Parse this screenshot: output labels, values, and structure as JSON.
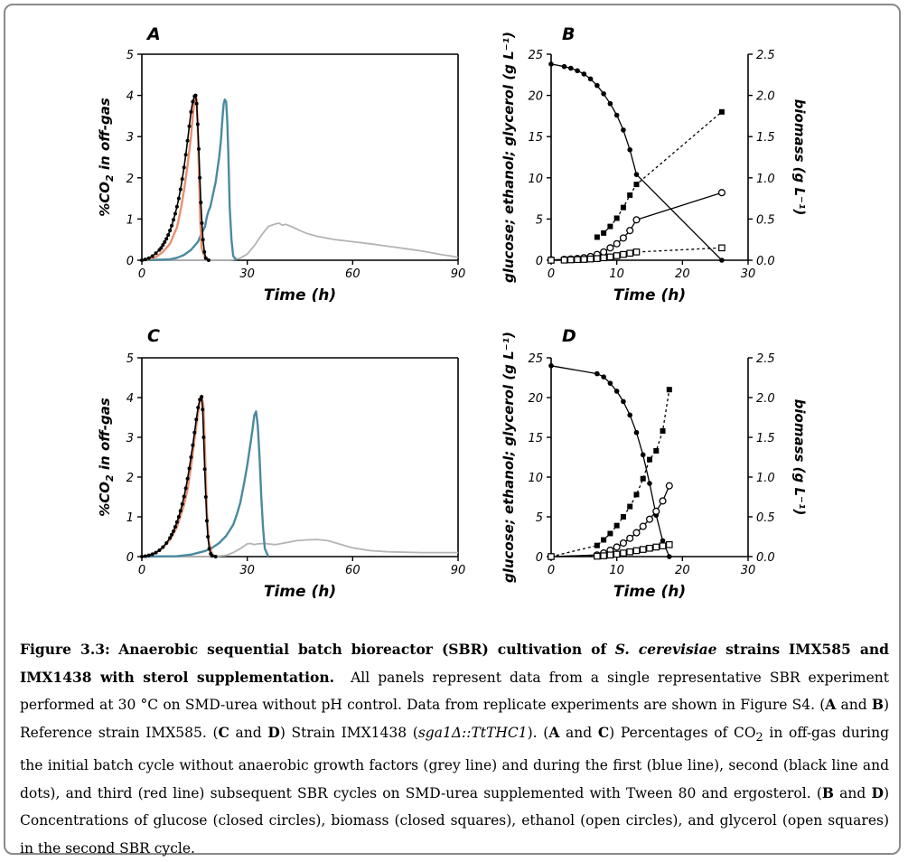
{
  "caption": {
    "figure_label": "Figure 3.3:",
    "title_before": "Anaerobic sequential batch bioreactor (SBR) cultivation of",
    "title_species": "S. cerevisiae",
    "title_after": "strains IMX585 and IMX1438 with sterol supplementation.",
    "s1": "All panels represent data from a single representative SBR experiment performed at 30 °C on SMD-urea without pH control. Data from replicate experiments are shown in Figure S4. (",
    "b_A1": "A",
    "and1": " and ",
    "b_B1": "B",
    "s2": ") Reference strain IMX585. (",
    "b_C1": "C",
    "and2": " and ",
    "b_D1": "D",
    "s3": ") Strain IMX1438 (",
    "genotype": "sga1Δ::TtTHC1",
    "s4": "). (",
    "b_A2": "A",
    "and3": " and ",
    "b_C2": "C",
    "s5": ") Percentages of CO",
    "sub2": "2",
    "s6": " in off-gas during the initial batch cycle without anaerobic growth factors (grey line) and during the first (blue line), second (black line and dots), and third (red line) subsequent SBR cycles on SMD-urea supplemented with Tween 80 and ergosterol. (",
    "b_B2": "B",
    "and4": " and ",
    "b_D2": "D",
    "s7": ") Concentrations of glucose (closed circles), biomass (closed squares), ethanol (open circles), and glycerol (open squares) in the second SBR cycle."
  },
  "chart_data": [
    {
      "panel": "A",
      "type": "line",
      "xlabel": "Time (h)",
      "ylabel_prefix": "%CO",
      "ylabel_sub": "2",
      "ylabel_suffix": " in off-gas",
      "xlim": [
        0,
        90
      ],
      "ylim": [
        0,
        5
      ],
      "xticks": [
        0,
        30,
        60,
        90
      ],
      "yticks": [
        0,
        1,
        2,
        3,
        4,
        5
      ],
      "grid": false,
      "colors": {
        "grey": "#b4b4b4",
        "blue": "#4a8aa0",
        "red": "#e89070",
        "black": "#000000"
      },
      "series": [
        {
          "key": "grey",
          "x": [
            0,
            24,
            26,
            28,
            30,
            32,
            34,
            36,
            38,
            39,
            40,
            41,
            43,
            45,
            47,
            50,
            55,
            60,
            65,
            70,
            75,
            80,
            85,
            88,
            90
          ],
          "y": [
            0,
            0,
            0.01,
            0.05,
            0.15,
            0.35,
            0.6,
            0.82,
            0.88,
            0.9,
            0.85,
            0.87,
            0.8,
            0.72,
            0.65,
            0.58,
            0.5,
            0.45,
            0.4,
            0.34,
            0.28,
            0.22,
            0.14,
            0.1,
            0.07
          ]
        },
        {
          "key": "blue",
          "x": [
            0,
            8,
            10,
            12,
            14,
            16,
            17,
            18,
            18.5,
            19,
            19.5,
            20,
            21,
            22,
            22.5,
            23,
            23.3,
            23.6,
            24,
            24.3,
            24.6,
            25,
            25.5,
            26,
            27
          ],
          "y": [
            0,
            0.02,
            0.06,
            0.13,
            0.25,
            0.45,
            0.65,
            0.82,
            1.05,
            1.2,
            1.3,
            1.5,
            1.9,
            2.5,
            2.9,
            3.5,
            3.8,
            3.9,
            3.85,
            3.4,
            2.6,
            1.3,
            0.5,
            0.1,
            0
          ]
        },
        {
          "key": "red",
          "x": [
            0,
            2,
            4,
            6,
            8,
            10,
            11,
            12,
            13,
            14,
            14.5,
            15,
            15.3,
            15.6,
            16,
            16.3,
            16.6,
            17,
            18,
            19
          ],
          "y": [
            0,
            0.02,
            0.08,
            0.2,
            0.4,
            0.8,
            1.2,
            1.7,
            2.3,
            3.0,
            3.5,
            3.9,
            4.0,
            3.9,
            3.0,
            2.0,
            1.0,
            0.3,
            0.05,
            0
          ]
        },
        {
          "key": "black",
          "dots": true,
          "x": [
            0,
            1,
            2,
            3,
            4,
            5,
            5.5,
            6,
            6.5,
            7,
            7.5,
            8,
            8.5,
            9,
            9.5,
            10,
            10.5,
            11,
            11.5,
            12,
            12.5,
            13,
            13.5,
            14,
            14.5,
            15,
            15.3,
            15.6,
            15.9,
            16.2,
            16.5,
            16.8,
            17.1,
            17.4,
            17.8,
            18.2,
            19
          ],
          "y": [
            0,
            0.02,
            0.05,
            0.1,
            0.17,
            0.25,
            0.3,
            0.37,
            0.44,
            0.52,
            0.61,
            0.72,
            0.84,
            0.98,
            1.13,
            1.3,
            1.5,
            1.72,
            1.97,
            2.25,
            2.56,
            2.9,
            3.25,
            3.6,
            3.85,
            3.98,
            4.0,
            3.8,
            3.3,
            2.7,
            2.0,
            1.4,
            0.9,
            0.5,
            0.2,
            0.05,
            0
          ]
        }
      ]
    },
    {
      "panel": "B",
      "type": "line",
      "xlabel": "Time (h)",
      "ylabel": "glucose; ethanol; glycerol (g L⁻¹)",
      "ylabel2": "biomass (g L⁻¹)",
      "xlim": [
        0,
        30
      ],
      "ylim": [
        0,
        25
      ],
      "ylim2": [
        0,
        2.5
      ],
      "xticks": [
        0,
        10,
        20,
        30
      ],
      "yticks": [
        0,
        5,
        10,
        15,
        20,
        25
      ],
      "yticks2": [
        "0.0",
        "0.5",
        "1.0",
        "1.5",
        "2.0",
        "2.5"
      ],
      "grid": false,
      "series": [
        {
          "key": "glucose",
          "marker": "closed-circle",
          "line": "solid",
          "x": [
            0,
            2,
            3,
            4,
            5,
            6,
            7,
            8,
            9,
            10,
            11,
            12,
            13,
            26
          ],
          "y": [
            23.8,
            23.5,
            23.3,
            23.0,
            22.6,
            22.0,
            21.2,
            20.2,
            19.0,
            17.6,
            15.8,
            13.4,
            10.4,
            0
          ]
        },
        {
          "key": "biomass",
          "axis": "right",
          "marker": "closed-square",
          "line": "dashed",
          "x": [
            7,
            8,
            9,
            10,
            11,
            12,
            13,
            26
          ],
          "y": [
            0.28,
            0.33,
            0.41,
            0.51,
            0.64,
            0.79,
            0.92,
            1.8
          ]
        },
        {
          "key": "ethanol",
          "marker": "open-circle",
          "line": "solid",
          "x": [
            0,
            2,
            3,
            4,
            5,
            6,
            7,
            8,
            9,
            10,
            11,
            12,
            13,
            26
          ],
          "y": [
            0.05,
            0.1,
            0.15,
            0.2,
            0.3,
            0.45,
            0.7,
            1.0,
            1.5,
            2.0,
            2.7,
            3.6,
            4.9,
            8.2
          ]
        },
        {
          "key": "glycerol",
          "marker": "open-square",
          "line": "dashed",
          "x": [
            0,
            2,
            3,
            4,
            5,
            6,
            7,
            8,
            9,
            10,
            11,
            12,
            13,
            26
          ],
          "y": [
            0,
            0.02,
            0.05,
            0.08,
            0.1,
            0.15,
            0.2,
            0.3,
            0.4,
            0.55,
            0.7,
            0.85,
            1.0,
            1.5
          ]
        }
      ]
    },
    {
      "panel": "C",
      "type": "line",
      "xlabel": "Time (h)",
      "ylabel_prefix": "%CO",
      "ylabel_sub": "2",
      "ylabel_suffix": " in off-gas",
      "xlim": [
        0,
        90
      ],
      "ylim": [
        0,
        5
      ],
      "xticks": [
        0,
        30,
        60,
        90
      ],
      "yticks": [
        0,
        1,
        2,
        3,
        4,
        5
      ],
      "grid": false,
      "colors": {
        "grey": "#b4b4b4",
        "blue": "#4a8aa0",
        "red": "#e89070",
        "black": "#000000"
      },
      "series": [
        {
          "key": "grey",
          "x": [
            0,
            20,
            24,
            26,
            28,
            30,
            31,
            32,
            33,
            35,
            38,
            41,
            44,
            47,
            50,
            53,
            56,
            60,
            65,
            70,
            80,
            90
          ],
          "y": [
            0,
            0,
            0.03,
            0.1,
            0.2,
            0.32,
            0.33,
            0.3,
            0.32,
            0.33,
            0.3,
            0.35,
            0.4,
            0.42,
            0.43,
            0.4,
            0.32,
            0.22,
            0.15,
            0.12,
            0.1,
            0.1
          ]
        },
        {
          "key": "blue",
          "x": [
            0,
            10,
            14,
            18,
            20,
            22,
            24,
            26,
            27,
            28,
            29,
            30,
            31,
            31.5,
            32,
            32.5,
            33,
            33.5,
            34,
            34.5,
            35,
            36
          ],
          "y": [
            0,
            0.01,
            0.05,
            0.14,
            0.22,
            0.34,
            0.52,
            0.8,
            1.05,
            1.35,
            1.8,
            2.3,
            2.9,
            3.2,
            3.55,
            3.65,
            3.3,
            2.5,
            1.5,
            0.7,
            0.2,
            0
          ]
        },
        {
          "key": "red",
          "x": [
            0,
            2,
            4,
            6,
            8,
            10,
            12,
            13,
            14,
            15,
            16,
            16.5,
            17,
            17.5,
            18,
            18.5,
            19,
            20,
            21
          ],
          "y": [
            0,
            0.03,
            0.1,
            0.22,
            0.42,
            0.75,
            1.3,
            1.7,
            2.25,
            2.95,
            3.6,
            3.9,
            4.05,
            3.8,
            2.6,
            1.2,
            0.4,
            0.05,
            0
          ]
        },
        {
          "key": "black",
          "dots": true,
          "x": [
            0,
            1,
            2,
            3,
            4,
            5,
            6,
            7,
            8,
            8.5,
            9,
            9.5,
            10,
            10.5,
            11,
            11.5,
            12,
            12.5,
            13,
            13.5,
            14,
            14.5,
            15,
            15.5,
            16,
            16.5,
            17,
            17.3,
            17.6,
            17.9,
            18.2,
            18.5,
            18.8,
            19.2,
            19.6,
            20,
            21
          ],
          "y": [
            0,
            0.01,
            0.03,
            0.06,
            0.1,
            0.16,
            0.24,
            0.34,
            0.47,
            0.55,
            0.64,
            0.75,
            0.87,
            1.0,
            1.15,
            1.32,
            1.51,
            1.72,
            1.96,
            2.22,
            2.5,
            2.8,
            3.12,
            3.45,
            3.75,
            3.95,
            4.02,
            3.7,
            3.0,
            2.2,
            1.5,
            0.9,
            0.5,
            0.2,
            0.07,
            0.02,
            0
          ]
        }
      ]
    },
    {
      "panel": "D",
      "type": "line",
      "xlabel": "Time (h)",
      "ylabel": "glucose; ethanol; glycerol (g L⁻¹)",
      "ylabel2": "biomass (g L⁻¹)",
      "xlim": [
        0,
        30
      ],
      "ylim": [
        0,
        25
      ],
      "ylim2": [
        0,
        2.5
      ],
      "xticks": [
        0,
        10,
        20,
        30
      ],
      "yticks": [
        0,
        5,
        10,
        15,
        20,
        25
      ],
      "yticks2": [
        "0.0",
        "0.5",
        "1.0",
        "1.5",
        "2.0",
        "2.5"
      ],
      "grid": false,
      "series": [
        {
          "key": "glucose",
          "marker": "closed-circle",
          "line": "solid",
          "x": [
            0,
            7,
            8,
            9,
            10,
            11,
            12,
            13,
            14,
            15,
            16,
            17,
            18
          ],
          "y": [
            24,
            23,
            22.6,
            21.8,
            20.8,
            19.5,
            17.8,
            15.6,
            12.8,
            9.2,
            5.2,
            2.0,
            0
          ]
        },
        {
          "key": "biomass",
          "axis": "right",
          "marker": "closed-square",
          "line": "dashed",
          "x": [
            0,
            7,
            8,
            9,
            10,
            11,
            12,
            13,
            14,
            15,
            16,
            17,
            18
          ],
          "y": [
            0,
            0.14,
            0.21,
            0.29,
            0.39,
            0.5,
            0.63,
            0.78,
            0.98,
            1.22,
            1.33,
            1.58,
            2.1
          ]
        },
        {
          "key": "ethanol",
          "marker": "open-circle",
          "line": "solid",
          "x": [
            0,
            7,
            8,
            9,
            10,
            11,
            12,
            13,
            14,
            15,
            16,
            17,
            18
          ],
          "y": [
            0,
            0.2,
            0.45,
            0.8,
            1.2,
            1.7,
            2.3,
            3.0,
            3.8,
            4.7,
            5.7,
            7.0,
            8.9
          ]
        },
        {
          "key": "glycerol",
          "marker": "open-square",
          "line": "dashed",
          "x": [
            0,
            7,
            8,
            9,
            10,
            11,
            12,
            13,
            14,
            15,
            16,
            17,
            18
          ],
          "y": [
            0,
            0.05,
            0.1,
            0.2,
            0.3,
            0.45,
            0.6,
            0.75,
            0.9,
            1.05,
            1.2,
            1.35,
            1.5
          ]
        }
      ]
    }
  ]
}
